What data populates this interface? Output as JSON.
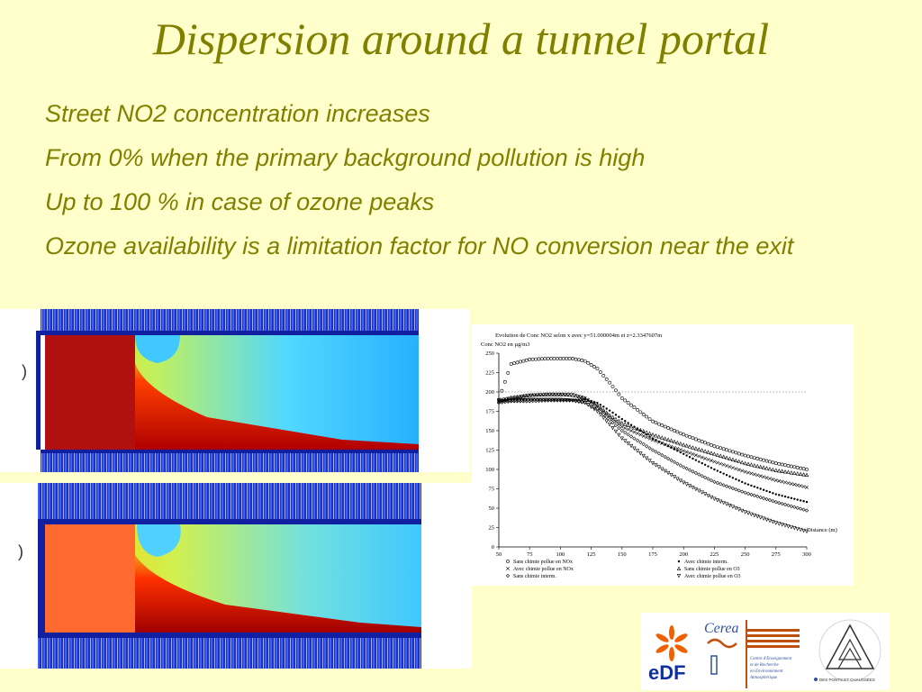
{
  "title": "Dispersion around a tunnel portal",
  "bullets": [
    "Street NO2 concentration increases",
    "From 0% when the primary background pollution is high",
    "Up to 100 % in case of ozone peaks",
    "Ozone availability is a limitation factor for NO conversion near the exit"
  ],
  "colors": {
    "title": "#808000",
    "background": "#ffffcc"
  },
  "chart_data": {
    "type": "scatter",
    "title": "Evolution de Conc NO2       selon x avec y=51.000004m et z=2.3347607m",
    "ylabel": "Conc NO2       en µg/m3",
    "xlabel": "Distance (m)",
    "xlim": [
      50,
      300
    ],
    "ylim": [
      0,
      250
    ],
    "xticks": [
      "50",
      "75",
      "100",
      "125",
      "150",
      "175",
      "200",
      "225",
      "250",
      "275",
      "300"
    ],
    "yticks": [
      "0",
      "25",
      "50",
      "75",
      "100",
      "125",
      "150",
      "175",
      "200",
      "225",
      "250"
    ],
    "reference_line_y": 200,
    "x": [
      50,
      60,
      75,
      90,
      100,
      110,
      120,
      130,
      140,
      150,
      175,
      200,
      225,
      250,
      275,
      300
    ],
    "series": [
      {
        "name": "Sans chimie pollue en NOx",
        "marker": "circle",
        "values": [
          190,
          236,
          242,
          243,
          243,
          243,
          240,
          230,
          212,
          192,
          162,
          145,
          130,
          118,
          108,
          100
        ]
      },
      {
        "name": "Avec chimie pollue en NOx",
        "marker": "x",
        "values": [
          190,
          192,
          196,
          197,
          197,
          197,
          192,
          182,
          168,
          155,
          138,
          124,
          110,
          97,
          86,
          77
        ]
      },
      {
        "name": "Sans chimie interm.",
        "marker": "diamond",
        "values": [
          186,
          188,
          188,
          189,
          189,
          189,
          186,
          178,
          164,
          150,
          125,
          103,
          84,
          70,
          58,
          47
        ]
      },
      {
        "name": "Avec chimie interm.",
        "marker": "dot",
        "values": [
          188,
          190,
          190,
          190,
          190,
          190,
          190,
          186,
          176,
          165,
          140,
          120,
          100,
          82,
          68,
          58
        ]
      },
      {
        "name": "Sans chimie pollue en O3",
        "marker": "triangle-up",
        "values": [
          188,
          193,
          196,
          197,
          197,
          196,
          192,
          183,
          170,
          160,
          145,
          132,
          120,
          108,
          99,
          93
        ]
      },
      {
        "name": "Avec chimie pollue en O3",
        "marker": "triangle-down",
        "values": [
          188,
          189,
          190,
          190,
          190,
          189,
          186,
          175,
          158,
          140,
          108,
          83,
          62,
          45,
          31,
          20
        ]
      }
    ],
    "legend": [
      "Sans chimie pollue en NOx",
      "Avec chimie interm.",
      "Avec chimie pollue en NOx",
      "Sans chimie pollue en O3",
      "Sans chimie interm.",
      "Avec chimie pollue en O3"
    ]
  },
  "logos": {
    "edf": "eDF",
    "cerea": "Cerea",
    "cerea_caption": [
      "Centre d'Enseignement",
      "et de Recherche",
      "en Environnement",
      "Atmosphérique"
    ],
    "enpc_ring": "ÉCOLE NATIONALE DES PONTS ET CHAUSSÉES"
  }
}
